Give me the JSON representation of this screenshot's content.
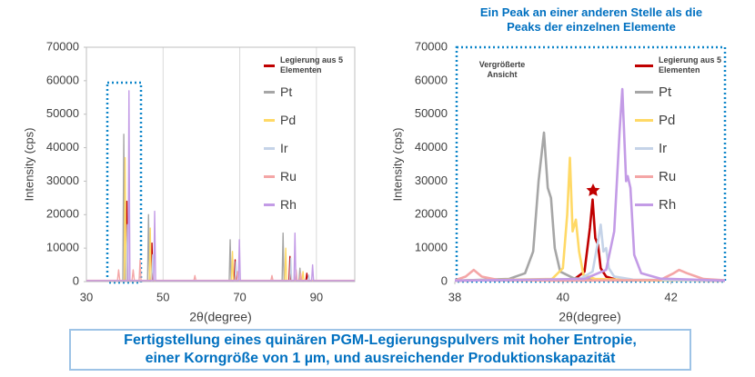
{
  "chart_data": [
    {
      "type": "line",
      "xlabel": "2θ(degree)",
      "ylabel": "Intensity (cps)",
      "xlim": [
        30,
        100
      ],
      "xticks": [
        30,
        50,
        70,
        90
      ],
      "ylim": [
        0,
        70000
      ],
      "yticks": [
        0,
        10000,
        20000,
        30000,
        40000,
        50000,
        60000,
        70000
      ],
      "grid": "x",
      "legend": "upper right",
      "series": [
        {
          "name": "Legierung aus 5 Elementen",
          "color": "#c00000",
          "x": [
            30,
            40.3,
            40.55,
            40.8,
            46.85,
            47.1,
            47.35,
            68.55,
            68.8,
            69.05,
            82.85,
            83.1,
            83.35,
            87.25,
            87.5,
            87.75,
            100
          ],
          "values": [
            300,
            300,
            24000,
            300,
            300,
            11500,
            300,
            300,
            6500,
            300,
            300,
            7500,
            300,
            300,
            2500,
            300,
            300
          ]
        },
        {
          "name": "Pt",
          "color": "#a6a6a6",
          "x": [
            30,
            39.5,
            39.75,
            40.0,
            45.95,
            46.2,
            46.45,
            67.25,
            67.5,
            67.75,
            81.05,
            81.3,
            81.55,
            85.45,
            85.7,
            85.95,
            100
          ],
          "values": [
            300,
            300,
            44000,
            300,
            300,
            20000,
            300,
            300,
            12500,
            300,
            300,
            14500,
            300,
            300,
            4000,
            300,
            300
          ]
        },
        {
          "name": "Pd",
          "color": "#ffd966",
          "x": [
            30,
            39.85,
            40.1,
            40.35,
            46.4,
            46.65,
            46.9,
            67.85,
            68.1,
            68.35,
            81.75,
            82.0,
            82.25,
            86.25,
            86.5,
            86.75,
            100
          ],
          "values": [
            300,
            300,
            37000,
            300,
            300,
            16000,
            300,
            300,
            9000,
            300,
            300,
            10000,
            300,
            300,
            3000,
            300,
            300
          ]
        },
        {
          "name": "Ir",
          "color": "#c5d3e8",
          "x": [
            30,
            40.45,
            40.7,
            40.95,
            47.05,
            47.3,
            47.55,
            68.75,
            69.0,
            69.25,
            83.05,
            83.3,
            83.55,
            87.75,
            88.0,
            88.25,
            100
          ],
          "values": [
            300,
            300,
            17000,
            300,
            300,
            8000,
            300,
            300,
            6000,
            300,
            300,
            7000,
            300,
            300,
            2000,
            300,
            300
          ]
        },
        {
          "name": "Ru",
          "color": "#f4a6a6",
          "x": [
            30,
            38.1,
            38.4,
            38.7,
            41.9,
            42.2,
            42.5,
            43.75,
            44.0,
            44.25,
            58.05,
            58.3,
            58.55,
            69.15,
            69.4,
            69.65,
            78.15,
            78.4,
            78.65,
            84.45,
            84.7,
            84.95,
            85.65,
            85.9,
            86.15,
            100
          ],
          "values": [
            400,
            400,
            3500,
            400,
            400,
            3500,
            400,
            400,
            6500,
            400,
            400,
            1800,
            400,
            400,
            3000,
            400,
            400,
            1800,
            400,
            400,
            3500,
            400,
            400,
            2500,
            400,
            400
          ]
        },
        {
          "name": "Rh",
          "color": "#c39be6",
          "x": [
            30,
            40.85,
            41.1,
            41.35,
            47.55,
            47.8,
            48.05,
            69.65,
            69.9,
            70.15,
            84.15,
            84.4,
            84.65,
            88.75,
            89.0,
            89.25,
            100
          ],
          "values": [
            300,
            300,
            57000,
            300,
            300,
            21000,
            300,
            300,
            12500,
            300,
            300,
            14500,
            300,
            300,
            5000,
            300,
            300
          ]
        }
      ]
    },
    {
      "type": "line",
      "title": [
        "Ein Peak an einer anderen Stelle als die",
        "Peaks der einzelnen Elemente"
      ],
      "annotation": [
        "Vergrößerte",
        "Ansicht"
      ],
      "xlabel": "2θ(degree)",
      "ylabel": "Intensity (cps)",
      "xlim": [
        38,
        43
      ],
      "xticks": [
        38,
        40,
        42
      ],
      "ylim": [
        0,
        70000
      ],
      "yticks": [
        0,
        10000,
        20000,
        30000,
        40000,
        50000,
        60000,
        70000
      ],
      "grid": "none",
      "legend": "upper right",
      "series": [
        {
          "name": "Legierung aus 5 Elementen",
          "color": "#c00000",
          "x": [
            38,
            40.2,
            40.4,
            40.5,
            40.55,
            40.6,
            40.65,
            40.7,
            40.8,
            41.0,
            43
          ],
          "values": [
            300,
            600,
            3000,
            16000,
            24500,
            13000,
            11000,
            4000,
            1500,
            500,
            300
          ]
        },
        {
          "name": "Pt",
          "color": "#a6a6a6",
          "x": [
            38,
            39.0,
            39.3,
            39.45,
            39.55,
            39.65,
            39.72,
            39.78,
            39.85,
            39.95,
            40.2,
            41,
            43
          ],
          "values": [
            300,
            800,
            2500,
            9000,
            30000,
            44500,
            28000,
            25000,
            10000,
            3000,
            1000,
            400,
            300
          ]
        },
        {
          "name": "Pd",
          "color": "#ffd966",
          "x": [
            38,
            39.8,
            40.0,
            40.08,
            40.13,
            40.18,
            40.24,
            40.3,
            40.38,
            40.6,
            41.5,
            43
          ],
          "values": [
            300,
            800,
            4000,
            20000,
            37000,
            15000,
            18500,
            9000,
            2000,
            800,
            400,
            300
          ]
        },
        {
          "name": "Ir",
          "color": "#c5d3e8",
          "x": [
            38,
            40.3,
            40.55,
            40.65,
            40.7,
            40.75,
            40.8,
            40.85,
            40.95,
            41.3,
            43
          ],
          "values": [
            300,
            600,
            3000,
            12000,
            17000,
            9000,
            10000,
            4000,
            1500,
            600,
            300
          ]
        },
        {
          "name": "Ru",
          "color": "#f4a6a6",
          "x": [
            38,
            38.2,
            38.35,
            38.5,
            38.8,
            40,
            41.8,
            42.05,
            42.15,
            42.3,
            42.6,
            43
          ],
          "values": [
            400,
            1500,
            3500,
            1500,
            500,
            300,
            500,
            2500,
            3500,
            2500,
            800,
            400
          ]
        },
        {
          "name": "Rh",
          "color": "#c39be6",
          "x": [
            38,
            40.4,
            40.8,
            40.95,
            41.05,
            41.1,
            41.17,
            41.2,
            41.25,
            41.32,
            41.45,
            41.8,
            43
          ],
          "values": [
            300,
            800,
            3500,
            15000,
            45000,
            57500,
            30000,
            31500,
            28000,
            8000,
            2500,
            900,
            300
          ]
        }
      ]
    }
  ],
  "caption": [
    "Fertigstellung eines quinären PGM-Legierungspulvers mit hoher Entropie,",
    "einer Korngröße von 1 µm, und ausreichender Produktionskapazität"
  ]
}
